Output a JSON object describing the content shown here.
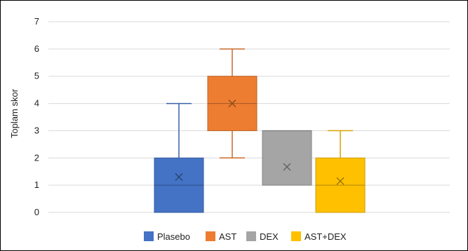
{
  "chart_data": {
    "type": "boxplot",
    "ylabel": "Toplam skor",
    "xlabel": "",
    "ylim": [
      0,
      7
    ],
    "yticks": [
      0,
      1,
      2,
      3,
      4,
      5,
      6,
      7
    ],
    "grid": true,
    "legend_position": "bottom",
    "series": [
      {
        "name": "Plasebo",
        "color": "#4472C4",
        "min": 0,
        "q1": 0,
        "median": 1,
        "q3": 2,
        "max": 4,
        "mean": 1.3
      },
      {
        "name": "AST",
        "color": "#ED7D31",
        "min": 2,
        "q1": 3,
        "median": 4,
        "q3": 5,
        "max": 6,
        "mean": 4
      },
      {
        "name": "DEX",
        "color": "#A5A5A5",
        "min": 1,
        "q1": 1,
        "median": 3,
        "q3": 3,
        "max": 3,
        "mean": 1.67
      },
      {
        "name": "AST+DEX",
        "color": "#FFC000",
        "min": 0,
        "q1": 0,
        "median": 1,
        "q3": 2,
        "max": 3,
        "mean": 1.15
      }
    ]
  }
}
